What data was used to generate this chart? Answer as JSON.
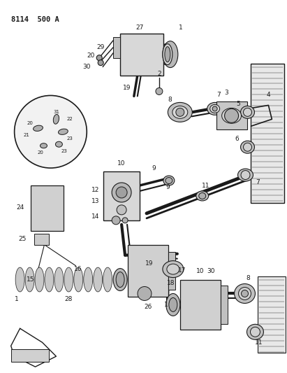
{
  "title": "8114 500 A",
  "bg": "#ffffff",
  "fg": "#1a1a1a",
  "gray1": "#c8c8c8",
  "gray2": "#a0a0a0",
  "gray3": "#e0e0e0",
  "fig_w": 4.11,
  "fig_h": 5.33,
  "dpi": 100
}
